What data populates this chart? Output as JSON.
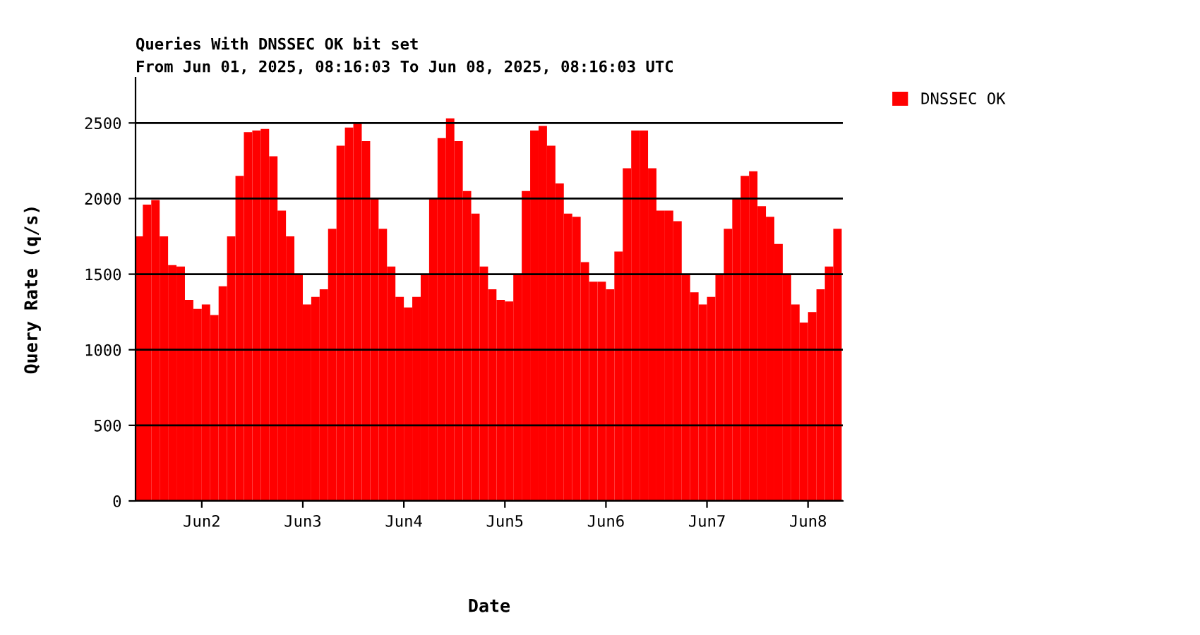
{
  "chart_data": {
    "type": "bar",
    "title": "Queries With DNSSEC OK bit set",
    "subtitle": "From Jun 01, 2025, 08:16:03 To Jun 08, 2025, 08:16:03 UTC",
    "xlabel": "Date",
    "ylabel": "Query Rate (q/s)",
    "x": [
      "2025-06-01T08:16",
      "2025-06-01T10:00",
      "2025-06-01T12:00",
      "2025-06-01T14:00",
      "2025-06-01T16:00",
      "2025-06-01T18:00",
      "2025-06-01T20:00",
      "2025-06-01T22:00",
      "2025-06-02T00:00",
      "2025-06-02T02:00",
      "2025-06-02T04:00",
      "2025-06-02T06:00",
      "2025-06-02T08:00",
      "2025-06-02T10:00",
      "2025-06-02T12:00",
      "2025-06-02T14:00",
      "2025-06-02T16:00",
      "2025-06-02T18:00",
      "2025-06-02T20:00",
      "2025-06-02T22:00",
      "2025-06-03T00:00",
      "2025-06-03T02:00",
      "2025-06-03T04:00",
      "2025-06-03T06:00",
      "2025-06-03T08:00",
      "2025-06-03T10:00",
      "2025-06-03T12:00",
      "2025-06-03T14:00",
      "2025-06-03T16:00",
      "2025-06-03T18:00",
      "2025-06-03T20:00",
      "2025-06-03T22:00",
      "2025-06-04T00:00",
      "2025-06-04T02:00",
      "2025-06-04T04:00",
      "2025-06-04T06:00",
      "2025-06-04T08:00",
      "2025-06-04T10:00",
      "2025-06-04T12:00",
      "2025-06-04T14:00",
      "2025-06-04T16:00",
      "2025-06-04T18:00",
      "2025-06-04T20:00",
      "2025-06-04T22:00",
      "2025-06-05T00:00",
      "2025-06-05T02:00",
      "2025-06-05T04:00",
      "2025-06-05T06:00",
      "2025-06-05T08:00",
      "2025-06-05T10:00",
      "2025-06-05T12:00",
      "2025-06-05T14:00",
      "2025-06-05T16:00",
      "2025-06-05T18:00",
      "2025-06-05T20:00",
      "2025-06-05T22:00",
      "2025-06-06T00:00",
      "2025-06-06T02:00",
      "2025-06-06T04:00",
      "2025-06-06T06:00",
      "2025-06-06T08:00",
      "2025-06-06T10:00",
      "2025-06-06T12:00",
      "2025-06-06T14:00",
      "2025-06-06T16:00",
      "2025-06-06T18:00",
      "2025-06-06T20:00",
      "2025-06-06T22:00",
      "2025-06-07T00:00",
      "2025-06-07T02:00",
      "2025-06-07T04:00",
      "2025-06-07T06:00",
      "2025-06-07T08:00",
      "2025-06-07T10:00",
      "2025-06-07T12:00",
      "2025-06-07T14:00",
      "2025-06-07T16:00",
      "2025-06-07T18:00",
      "2025-06-07T20:00",
      "2025-06-07T22:00",
      "2025-06-08T00:00",
      "2025-06-08T02:00",
      "2025-06-08T04:00",
      "2025-06-08T06:00"
    ],
    "series": [
      {
        "name": "DNSSEC OK",
        "color": "#ff0000",
        "values": [
          1750,
          1960,
          1990,
          1750,
          1560,
          1550,
          1330,
          1270,
          1300,
          1230,
          1420,
          1750,
          2150,
          2440,
          2450,
          2460,
          2280,
          1920,
          1750,
          1500,
          1300,
          1350,
          1400,
          1800,
          2350,
          2470,
          2500,
          2380,
          2000,
          1800,
          1550,
          1350,
          1280,
          1350,
          1500,
          2000,
          2400,
          2530,
          2380,
          2050,
          1900,
          1550,
          1400,
          1330,
          1320,
          1500,
          2050,
          2450,
          2480,
          2350,
          2100,
          1900,
          1880,
          1580,
          1450,
          1450,
          1400,
          1650,
          2200,
          2450,
          2450,
          2200,
          1920,
          1920,
          1850,
          1500,
          1380,
          1300,
          1350,
          1500,
          1800,
          2000,
          2150,
          2180,
          1950,
          1880,
          1700,
          1500,
          1300,
          1180,
          1250,
          1400,
          1550,
          1800
        ]
      }
    ],
    "xlim": [
      "2025-06-01T08:16",
      "2025-06-08T08:16"
    ],
    "xticks": [
      {
        "value": "2025-06-02",
        "label": "Jun2"
      },
      {
        "value": "2025-06-03",
        "label": "Jun3"
      },
      {
        "value": "2025-06-04",
        "label": "Jun4"
      },
      {
        "value": "2025-06-05",
        "label": "Jun5"
      },
      {
        "value": "2025-06-06",
        "label": "Jun6"
      },
      {
        "value": "2025-06-07",
        "label": "Jun7"
      },
      {
        "value": "2025-06-08",
        "label": "Jun8"
      }
    ],
    "ylim": [
      0,
      2800
    ],
    "yticks": [
      0,
      500,
      1000,
      1500,
      2000,
      2500
    ],
    "grid": "y",
    "legend": "right"
  }
}
